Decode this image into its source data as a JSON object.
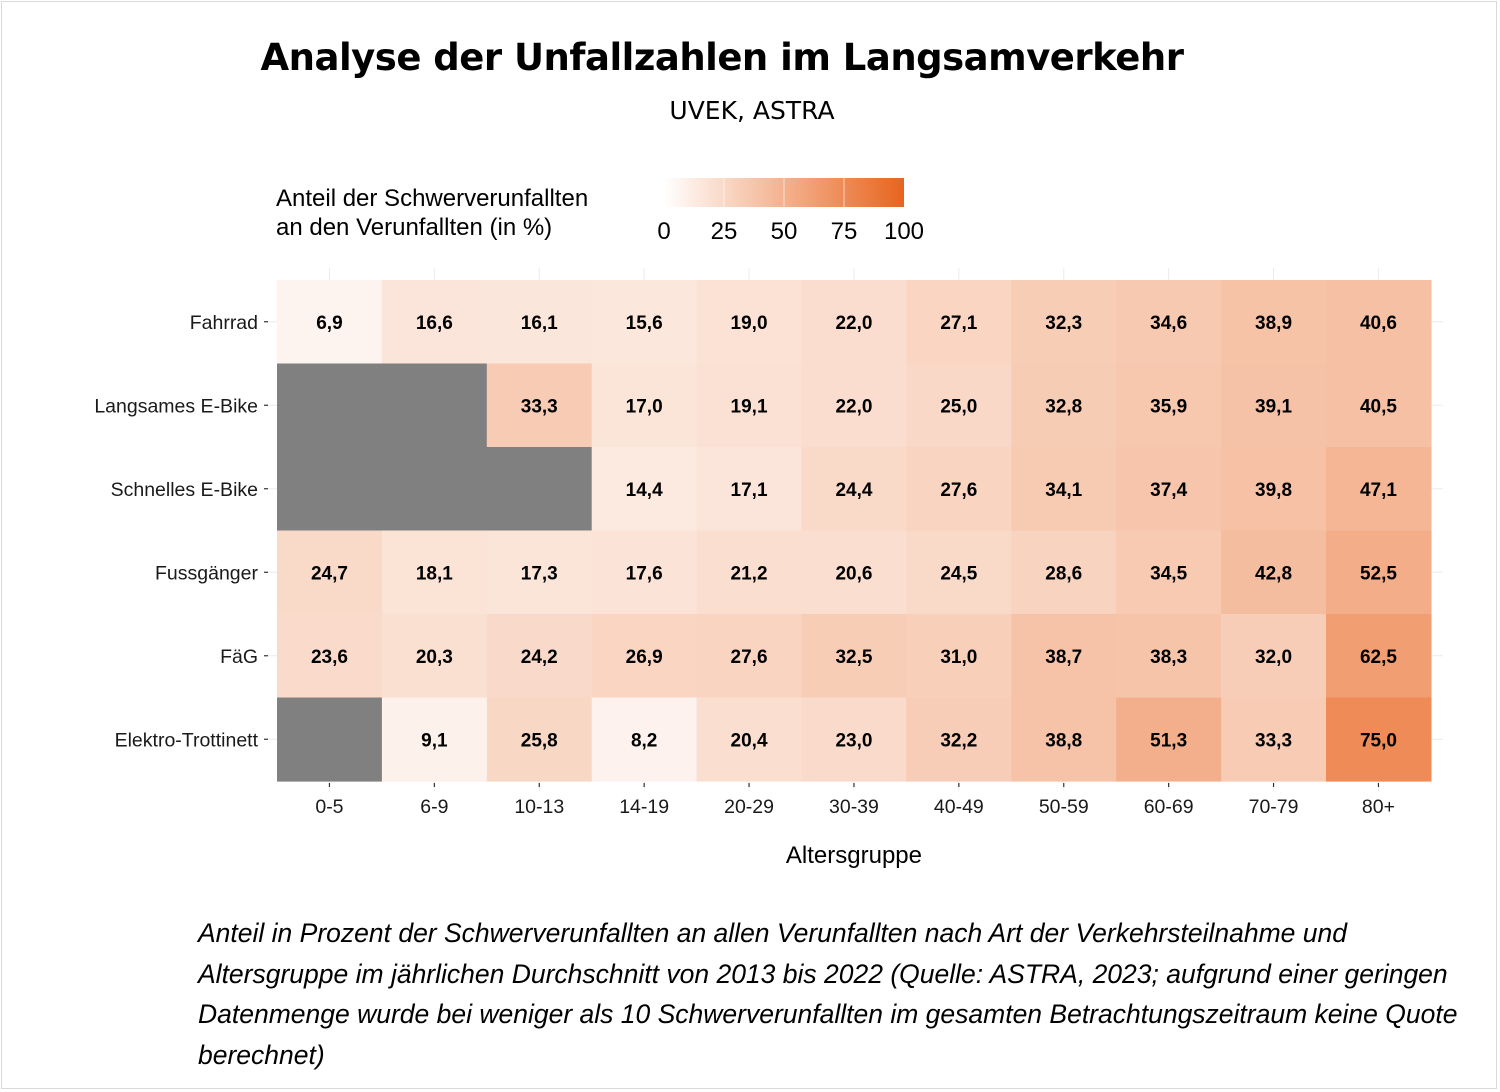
{
  "title": "Analyse der Unfallzahlen im Langsamverkehr",
  "subtitle": "UVEK, ASTRA",
  "legend": {
    "title_line1": "Anteil der Schwerverunfallten",
    "title_line2": "an den Verunfallten (in %)",
    "ticks": [
      "0",
      "25",
      "50",
      "75",
      "100"
    ],
    "color_low": "#ffffff",
    "color_high": "#e8641e"
  },
  "missing_color": "#808080",
  "caption": "Anteil in Prozent der Schwerverunfallten an allen Verunfallten nach Art der Verkehrsteilnahme und Altersgruppe im jährlichen Durchschnitt von 2013 bis 2022 (Quelle: ASTRA, 2023; aufgrund einer geringen Datenmenge wurde bei weniger als 10 Schwerverunfallten im gesamten Betrachtungszeitraum keine Quote berechnet)",
  "chart_data": {
    "type": "heatmap",
    "title": "Analyse der Unfallzahlen im Langsamverkehr",
    "xlabel": "Altersgruppe",
    "ylabel": "",
    "x_categories": [
      "0-5",
      "6-9",
      "10-13",
      "14-19",
      "20-29",
      "30-39",
      "40-49",
      "50-59",
      "60-69",
      "70-79",
      "80+"
    ],
    "y_categories": [
      "Fahrrad",
      "Langsames E-Bike",
      "Schnelles E-Bike",
      "Fussgänger",
      "FäG",
      "Elektro-Trottinett"
    ],
    "value_range": [
      0,
      100
    ],
    "values": [
      [
        6.9,
        16.6,
        16.1,
        15.6,
        19.0,
        22.0,
        27.1,
        32.3,
        34.6,
        38.9,
        40.6
      ],
      [
        null,
        null,
        33.3,
        17.0,
        19.1,
        22.0,
        25.0,
        32.8,
        35.9,
        39.1,
        40.5
      ],
      [
        null,
        null,
        null,
        14.4,
        17.1,
        24.4,
        27.6,
        34.1,
        37.4,
        39.8,
        47.1
      ],
      [
        24.7,
        18.1,
        17.3,
        17.6,
        21.2,
        20.6,
        24.5,
        28.6,
        34.5,
        42.8,
        52.5
      ],
      [
        23.6,
        20.3,
        24.2,
        26.9,
        27.6,
        32.5,
        31.0,
        38.7,
        38.3,
        32.0,
        62.5
      ],
      [
        null,
        9.1,
        25.8,
        8.2,
        20.4,
        23.0,
        32.2,
        38.8,
        51.3,
        33.3,
        75.0
      ]
    ],
    "labels": [
      [
        "6,9",
        "16,6",
        "16,1",
        "15,6",
        "19,0",
        "22,0",
        "27,1",
        "32,3",
        "34,6",
        "38,9",
        "40,6"
      ],
      [
        "",
        "",
        "33,3",
        "17,0",
        "19,1",
        "22,0",
        "25,0",
        "32,8",
        "35,9",
        "39,1",
        "40,5"
      ],
      [
        "",
        "",
        "",
        "14,4",
        "17,1",
        "24,4",
        "27,6",
        "34,1",
        "37,4",
        "39,8",
        "47,1"
      ],
      [
        "24,7",
        "18,1",
        "17,3",
        "17,6",
        "21,2",
        "20,6",
        "24,5",
        "28,6",
        "34,5",
        "42,8",
        "52,5"
      ],
      [
        "23,6",
        "20,3",
        "24,2",
        "26,9",
        "27,6",
        "32,5",
        "31,0",
        "38,7",
        "38,3",
        "32,0",
        "62,5"
      ],
      [
        "",
        "9,1",
        "25,8",
        "8,2",
        "20,4",
        "23,0",
        "32,2",
        "38,8",
        "51,3",
        "33,3",
        "75,0"
      ]
    ],
    "grid": true,
    "legend_position": "top"
  }
}
